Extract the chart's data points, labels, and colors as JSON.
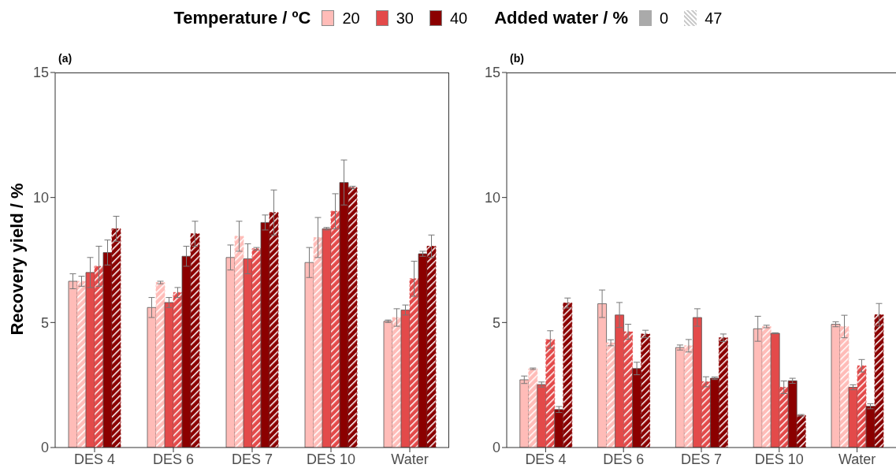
{
  "chart_data": [
    {
      "type": "bar",
      "title": "(a)",
      "ylabel": "Recovery yield / %",
      "legend_title": "Temperature / ºC",
      "legend": "top",
      "annotations": [
        "Added water / %",
        "0",
        "47"
      ],
      "categories": [
        "DES 4",
        "DES 6",
        "DES 7",
        "DES 10",
        "Water"
      ],
      "ylim": [
        0,
        15
      ],
      "yticks": [
        0,
        5,
        10,
        15
      ],
      "grid": false,
      "series": [
        {
          "name": "20",
          "color": "#ffbcb8",
          "line_style": "solid",
          "values": [
            6.65,
            5.6,
            7.6,
            7.4,
            5.05
          ],
          "errors": [
            0.3,
            0.4,
            0.5,
            0.6,
            0.05
          ]
        },
        {
          "color": "#ffbcb8",
          "line_style": "dashed",
          "values": [
            6.65,
            6.6,
            8.45,
            8.4,
            5.2
          ],
          "errors": [
            0.2,
            0.05,
            0.6,
            0.8,
            0.35
          ]
        },
        {
          "name": "30",
          "color": "#e34a4a",
          "line_style": "solid",
          "values": [
            7.0,
            5.8,
            7.55,
            8.75,
            5.5
          ],
          "errors": [
            0.6,
            0.2,
            0.6,
            0.05,
            0.2
          ]
        },
        {
          "color": "#e34a4a",
          "line_style": "dashed",
          "values": [
            7.25,
            6.2,
            7.95,
            9.45,
            6.75
          ],
          "errors": [
            0.8,
            0.2,
            0.05,
            0.7,
            0.7
          ]
        },
        {
          "name": "40",
          "color": "#8b0000",
          "line_style": "solid",
          "values": [
            7.8,
            7.65,
            9.0,
            10.6,
            7.75
          ],
          "errors": [
            0.5,
            0.4,
            0.3,
            0.9,
            0.1
          ]
        },
        {
          "color": "#8b0000",
          "line_style": "dashed",
          "values": [
            8.75,
            8.55,
            9.4,
            10.4,
            8.05
          ],
          "errors": [
            0.5,
            0.5,
            0.9,
            0.05,
            0.45
          ]
        }
      ]
    },
    {
      "type": "bar",
      "title": "(b)",
      "categories": [
        "DES 4",
        "DES 6",
        "DES 7",
        "DES 10",
        "Water"
      ],
      "ylim": [
        0,
        15
      ],
      "yticks": [
        0,
        5,
        10,
        15
      ],
      "grid": false,
      "series": [
        {
          "color": "#ffbcb8",
          "line_style": "solid",
          "values": [
            2.71,
            5.75,
            4.0,
            4.75,
            4.93
          ],
          "errors": [
            0.15,
            0.55,
            0.1,
            0.5,
            0.1
          ]
        },
        {
          "color": "#ffbcb8",
          "line_style": "dashed",
          "values": [
            3.15,
            4.19,
            4.07,
            4.84,
            4.84
          ],
          "errors": [
            0.03,
            0.12,
            0.25,
            0.05,
            0.45
          ]
        },
        {
          "color": "#e34a4a",
          "line_style": "solid",
          "values": [
            2.52,
            5.3,
            5.2,
            4.57,
            2.41
          ],
          "errors": [
            0.1,
            0.5,
            0.35,
            0.02,
            0.1
          ]
        },
        {
          "color": "#e34a4a",
          "line_style": "dashed",
          "values": [
            4.32,
            4.63,
            2.63,
            2.41,
            3.27
          ],
          "errors": [
            0.35,
            0.3,
            0.2,
            0.25,
            0.25
          ]
        },
        {
          "color": "#8b0000",
          "line_style": "solid",
          "values": [
            1.52,
            3.16,
            2.77,
            2.67,
            1.65
          ],
          "errors": [
            0.12,
            0.25,
            0.05,
            0.1,
            0.1
          ]
        },
        {
          "color": "#8b0000",
          "line_style": "dashed",
          "values": [
            5.78,
            4.54,
            4.39,
            1.29,
            5.31
          ],
          "errors": [
            0.2,
            0.15,
            0.15,
            0.03,
            0.45
          ]
        }
      ]
    }
  ]
}
